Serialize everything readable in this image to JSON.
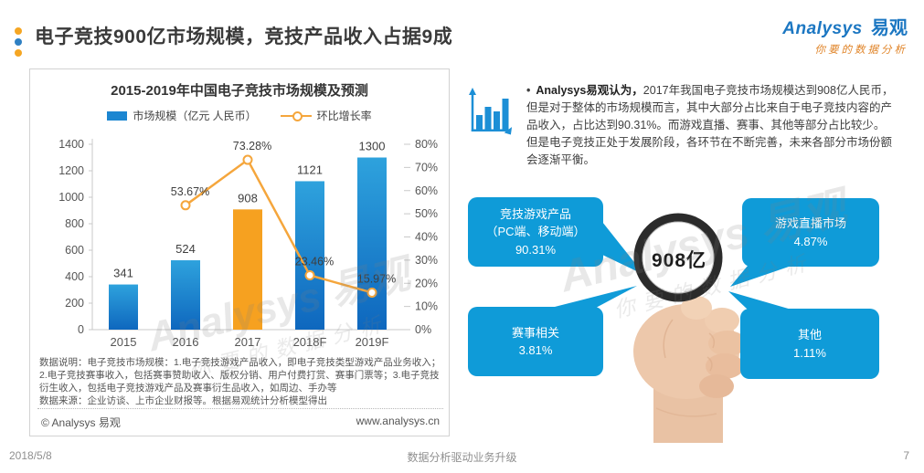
{
  "header": {
    "title": "电子竞技900亿市场规模，竞技产品收入占据9成",
    "logo": {
      "brand": "Analysys",
      "brand_cn": "易观",
      "tagline": "你要的数据分析"
    }
  },
  "watermark": {
    "line1": "Analysys 易观",
    "line2": "你要的数据分析"
  },
  "chart_card": {
    "title": "2015-2019年中国电子竞技市场规模及预测",
    "footnote_line1": "数据说明：电子竞技市场规模：1.电子竞技游戏产品收入，即电子竞技类型游戏产品业务收入；2.电子竞技赛事收入，包括赛事赞助收入、版权分销、用户付费打赏、赛事门票等；3.电子竞技衍生收入，包括电子竞技游戏产品及赛事衍生品收入，如周边、手办等",
    "footnote_line2": "数据来源：企业访谈、上市企业财报等。根据易观统计分析模型得出",
    "copyright": "© Analysys 易观",
    "website": "www.analysys.cn"
  },
  "chart_data": {
    "type": "bar",
    "title": "2015-2019年中国电子竞技市场规模及预测",
    "categories": [
      "2015",
      "2016",
      "2017",
      "2018F",
      "2019F"
    ],
    "series": [
      {
        "name": "市场规模（亿元 人民币）",
        "type": "bar",
        "axis": "left",
        "values": [
          341,
          524,
          908,
          1121,
          1300
        ],
        "highlight_index": 2
      },
      {
        "name": "环比增长率",
        "type": "line",
        "axis": "right",
        "values": [
          null,
          53.67,
          73.28,
          23.46,
          15.97
        ],
        "labels": [
          "",
          "53.67%",
          "73.28%",
          "23.46%",
          "15.97%"
        ]
      }
    ],
    "left_axis": {
      "min": 0,
      "max": 1400,
      "step": 200,
      "ticks": [
        "0",
        "200",
        "400",
        "600",
        "800",
        "1000",
        "1200",
        "1400"
      ]
    },
    "right_axis": {
      "min": 0,
      "max": 80,
      "step": 10,
      "ticks": [
        "0%",
        "10%",
        "20%",
        "30%",
        "40%",
        "50%",
        "60%",
        "70%",
        "80%"
      ]
    },
    "legend_position": "top",
    "grid": false,
    "colors": {
      "bar_top": "#2EA2DD",
      "bar_bottom": "#0E67BE",
      "bar_highlight": "#F6A120",
      "line": "#F5A63C",
      "label": "#3f3f3f",
      "axis": "#c9c9c9",
      "tick_text": "#555555"
    }
  },
  "insight": {
    "bullet": "•",
    "lead": "Analysys易观认为，",
    "body": "2017年我国电子竞技市场规模达到908亿人民币，但是对于整体的市场规模而言，其中大部分占比来自于电子竞技内容的产品收入，占比达到90.31%。而游戏直播、赛事、其他等部分占比较少。但是电子竞技正处于发展阶段，各环节在不断完善，未来各部分市场份额会逐渐平衡。"
  },
  "diagram": {
    "center_value": "908亿",
    "box_color": "#0F9BD8",
    "callouts": [
      {
        "lines": [
          "竞技游戏产品",
          "（PC端、移动端）",
          "90.31%"
        ]
      },
      {
        "lines": [
          "赛事相关",
          "3.81%"
        ]
      },
      {
        "lines": [
          "游戏直播市场",
          "4.87%"
        ]
      },
      {
        "lines": [
          "其他",
          "1.11%"
        ]
      }
    ]
  },
  "footer": {
    "date": "2018/5/8",
    "slogan": "数据分析驱动业务升级",
    "page": "7"
  }
}
